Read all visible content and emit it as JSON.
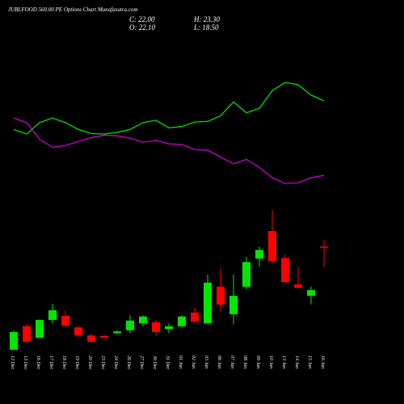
{
  "chart_data": {
    "type": "candlestick",
    "title": "JUBLFOOD 560.00 PE Options  Chart Munafasutra.com",
    "ohlc_labels": [
      "C: 22.00",
      "H: 23.30",
      "O: 22.10",
      "L: 18.50"
    ],
    "categories": [
      "12 Dec",
      "13 Dec",
      "16 Dec",
      "17 Dec",
      "18 Dec",
      "19 Dec",
      "20 Dec",
      "23 Dec",
      "24 Dec",
      "26 Dec",
      "27 Dec",
      "30 Dec",
      "31 Dec",
      "01 Jan",
      "02 Jan",
      "03 Jan",
      "06 Jan",
      "07 Jan",
      "08 Jan",
      "09 Jan",
      "10 Jan",
      "13 Jan",
      "14 Jan",
      "15 Jan",
      "16 Jan"
    ],
    "open": [
      4.1,
      8.2,
      6.2,
      9.3,
      10.0,
      8.0,
      6.6,
      6.5,
      7.0,
      7.5,
      8.7,
      8.9,
      7.7,
      8.2,
      10.6,
      8.7,
      15.1,
      10.3,
      15.1,
      20.0,
      24.8,
      20.1,
      15.5,
      13.5,
      22.1
    ],
    "high": [
      7.5,
      8.6,
      9.4,
      12.1,
      11.0,
      8.3,
      6.9,
      6.8,
      7.5,
      10.1,
      10.1,
      9.3,
      8.7,
      10.1,
      11.5,
      17.2,
      18.3,
      17.2,
      20.3,
      22.1,
      28.5,
      20.7,
      18.6,
      15.1,
      23.3
    ],
    "low": [
      4.1,
      5.4,
      6.2,
      8.7,
      8.0,
      6.3,
      5.4,
      5.9,
      6.9,
      7.0,
      8.2,
      6.5,
      7.0,
      8.0,
      8.9,
      8.7,
      10.8,
      8.5,
      14.6,
      18.6,
      19.2,
      15.8,
      14.8,
      12.0,
      18.5
    ],
    "close": [
      7.2,
      5.5,
      9.3,
      11.0,
      8.3,
      6.6,
      5.5,
      6.2,
      7.3,
      9.2,
      9.9,
      7.2,
      8.2,
      9.9,
      9.0,
      15.8,
      12.0,
      13.5,
      19.4,
      21.5,
      19.6,
      15.9,
      14.9,
      14.5,
      22.0
    ],
    "up_color": "#00e600",
    "down_color": "#ff0000",
    "lines": [
      {
        "color": "#00dd00",
        "values": [
          42.5,
          41.7,
          43.7,
          44.5,
          43.7,
          42.5,
          41.8,
          41.7,
          42.0,
          42.5,
          43.7,
          44.1,
          42.8,
          43.0,
          43.8,
          43.9,
          44.9,
          47.3,
          45.4,
          46.2,
          49.3,
          50.7,
          50.3,
          48.5,
          47.5
        ]
      },
      {
        "color": "#cc00cc",
        "values": [
          44.5,
          43.7,
          40.8,
          39.4,
          39.7,
          40.4,
          41.1,
          41.5,
          41.4,
          41.0,
          40.3,
          40.6,
          40.0,
          39.9,
          39.0,
          38.9,
          37.7,
          36.5,
          37.3,
          35.9,
          34.1,
          33.1,
          33.2,
          34.1,
          34.5
        ]
      }
    ],
    "ylim": [
      0,
      60
    ]
  }
}
